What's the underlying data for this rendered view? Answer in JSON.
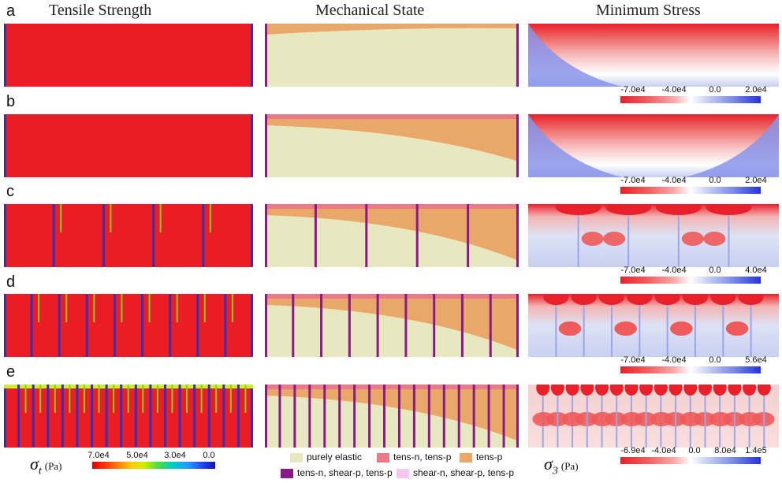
{
  "columns": {
    "tensile": "Tensile Strength",
    "mechanical": "Mechanical State",
    "minstress": "Minimum Stress"
  },
  "rows": [
    {
      "label": "a",
      "min_ticks": [
        "-7.0e4",
        "-4.0e4",
        "0.0",
        "2.0e4"
      ]
    },
    {
      "label": "b",
      "min_ticks": [
        "-7.0e4",
        "-4.0e4",
        "0.0",
        "2.0e4"
      ]
    },
    {
      "label": "c",
      "min_ticks": [
        "-7.0e4",
        "-4.0e4",
        "0.0",
        "4.0e4"
      ]
    },
    {
      "label": "d",
      "min_ticks": [
        "-7.0e4",
        "-4.0e4",
        "0.0",
        "5.6e4"
      ]
    },
    {
      "label": "e",
      "min_ticks": [
        "-6.9e4",
        "-4.0e4",
        "0.0",
        "8.0e4",
        "1.4e5"
      ]
    }
  ],
  "tensile_colorbar": {
    "symbol": "σ",
    "subscript": "t",
    "unit": "(Pa)",
    "ticks": [
      "7.0e4",
      "5.0e4",
      "3.0e4",
      "0.0"
    ]
  },
  "stress_symbol": {
    "symbol": "σ",
    "subscript": "3",
    "unit": "(Pa)"
  },
  "mech_legend": [
    {
      "label": "purely elastic",
      "color": "#e8e8c0"
    },
    {
      "label": "tens-n, tens-p",
      "color": "#ea7b86"
    },
    {
      "label": "tens-p",
      "color": "#e9a76a"
    },
    {
      "label": "tens-n, shear-p, tens-p",
      "color": "#8a1a8a"
    },
    {
      "label": "shear-n, shear-p, tens-p",
      "color": "#f4c7ef"
    }
  ],
  "colors": {
    "tensile_red": "#ec1c24",
    "crack_blue": "#3a2fb0",
    "stress_red": "#e8202a",
    "stress_blue": "#2233dd",
    "elastic": "#e8e8c0",
    "tens_p": "#e9a76a"
  }
}
